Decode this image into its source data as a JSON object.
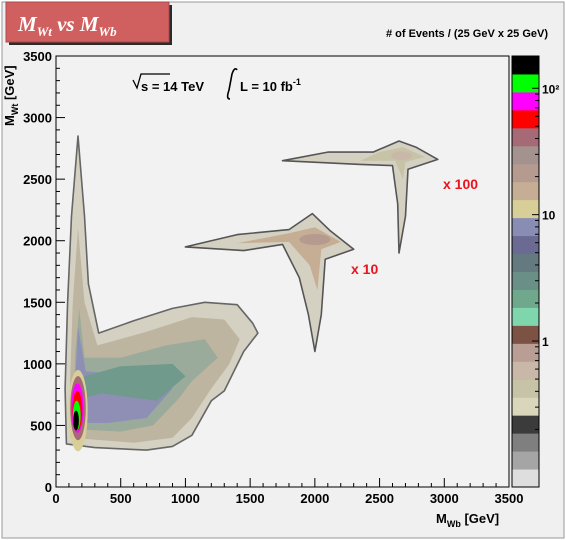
{
  "title": {
    "main": "M",
    "main_sub": "Wt",
    "vs": "vs",
    "second": "M",
    "second_sub": "Wb"
  },
  "colorbar_title": "# of Events / (25 GeV x 25 GeV)",
  "annotation": {
    "energy": "s = 14 TeV",
    "lumi_prefix": "L = 10 fb",
    "lumi_sup": "-1"
  },
  "labels": {
    "x10": "x 10",
    "x100": "x 100"
  },
  "colors": {
    "title_bg": "#d06060",
    "frame_bg": "#f0f0f0",
    "label_red": "#e8141e",
    "plot_bg": "#f2f2f2"
  },
  "chart_data": {
    "type": "heatmap",
    "xlabel": "M",
    "xlabel_sub": "Wb",
    "xlabel_unit": "[GeV]",
    "ylabel": "M",
    "ylabel_sub": "Wt",
    "ylabel_unit": "[GeV]",
    "xlim": [
      0,
      3500
    ],
    "ylim": [
      0,
      3500
    ],
    "x_ticks": [
      "0",
      "500",
      "1000",
      "1500",
      "2000",
      "2500",
      "3000",
      "3500"
    ],
    "y_ticks": [
      "0",
      "500",
      "1000",
      "1500",
      "2000",
      "2500",
      "3000",
      "3500"
    ],
    "z_scale": "log",
    "z_ticks": [
      "1",
      "10",
      "10²"
    ],
    "z_tick_values": [
      1,
      10,
      100
    ],
    "z_range": [
      0.07,
      180
    ],
    "colorbar_colors": [
      "#dedede",
      "#a5a5a5",
      "#7f7f7f",
      "#3b3b3b",
      "#d9d6bc",
      "#c7c3a6",
      "#c9b8a8",
      "#b89e94",
      "#7c5245",
      "#7fd6ac",
      "#70a88e",
      "#6a8f86",
      "#647a80",
      "#6a6a92",
      "#898cb3",
      "#d8cf98",
      "#c5ae94",
      "#b59a90",
      "#a4928e",
      "#a56a75",
      "#ff0000",
      "#ff00ff",
      "#00ff00",
      "#000000"
    ],
    "regions": [
      {
        "name": "signal-peak-M500",
        "center": [
          180,
          600
        ],
        "level": 100
      },
      {
        "name": "signal-tail-1000",
        "center": [
          1100,
          950
        ],
        "level": 10
      },
      {
        "name": "signal-peak-2000-x10",
        "center": [
          2000,
          2000
        ],
        "level": 10
      },
      {
        "name": "signal-peak-2700-x100",
        "center": [
          2700,
          2680
        ],
        "level": 10
      }
    ],
    "annotations": [
      "x 10",
      "x 100"
    ]
  }
}
